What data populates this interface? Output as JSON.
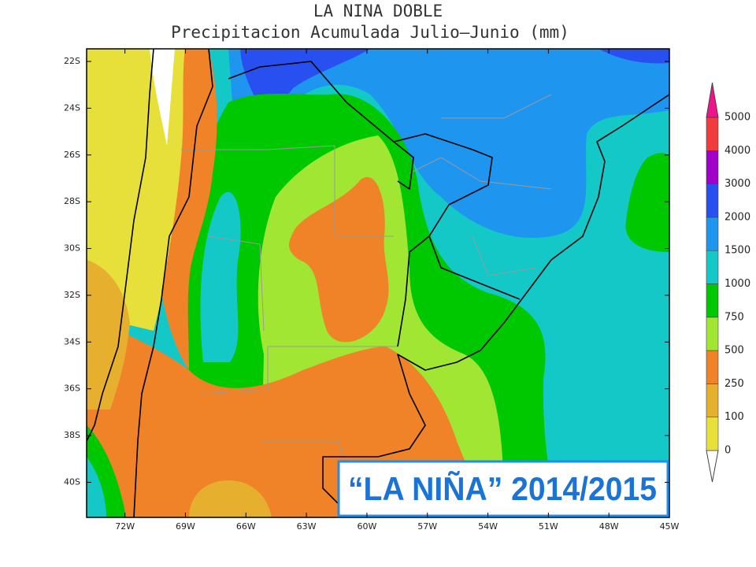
{
  "map": {
    "title": "LA NINA DOBLE",
    "subtitle": "Precipitacion Acumulada Julio—Junio (mm)",
    "xlim": [
      -73.9,
      -45
    ],
    "ylim": [
      -21.46,
      -41.5
    ],
    "lat_ticks": [
      {
        "value": -22,
        "label": "22S"
      },
      {
        "value": -24,
        "label": "24S"
      },
      {
        "value": -26,
        "label": "26S"
      },
      {
        "value": -28,
        "label": "28S"
      },
      {
        "value": -30,
        "label": "30S"
      },
      {
        "value": -32,
        "label": "32S"
      },
      {
        "value": -34,
        "label": "34S"
      },
      {
        "value": -36,
        "label": "36S"
      },
      {
        "value": -38,
        "label": "38S"
      },
      {
        "value": -40,
        "label": "40S"
      }
    ],
    "lon_ticks": [
      {
        "value": -72,
        "label": "72W"
      },
      {
        "value": -69,
        "label": "69W"
      },
      {
        "value": -66,
        "label": "66W"
      },
      {
        "value": -63,
        "label": "63W"
      },
      {
        "value": -60,
        "label": "60W"
      },
      {
        "value": -57,
        "label": "57W"
      },
      {
        "value": -54,
        "label": "54W"
      },
      {
        "value": -51,
        "label": "51W"
      },
      {
        "value": -48,
        "label": "48W"
      },
      {
        "value": -45,
        "label": "45W"
      }
    ]
  },
  "legend": {
    "levels": [
      0,
      100,
      250,
      500,
      750,
      1000,
      1500,
      2000,
      3000,
      4000,
      5000
    ],
    "colors": [
      "#e8e03a",
      "#e6af2d",
      "#f08228",
      "#a0e632",
      "#00c800",
      "#14c8c8",
      "#1e96f0",
      "#2850f0",
      "#a000c8",
      "#f03c3c"
    ],
    "under_color": "#ffffff",
    "over_color": "#f0148c"
  },
  "annotation": "“LA NIÑA” 2014/2015"
}
